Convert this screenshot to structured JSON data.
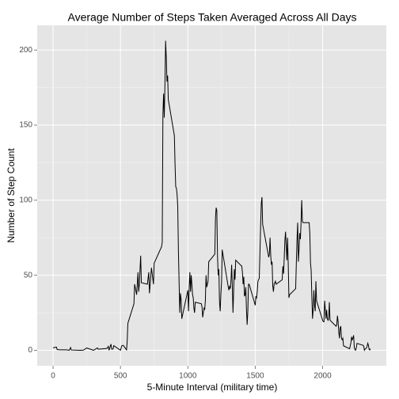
{
  "chart_data": {
    "type": "line",
    "title": "Average Number of Steps Taken Averaged Across All Days",
    "x_label": "5-Minute Interval (military time)",
    "y_label": "Number of Step Count",
    "color": "#000000",
    "grid": true,
    "xlim": [
      -117.75,
      2472.75
    ],
    "ylim": [
      -10.31,
      216.48
    ],
    "xticks": [
      0,
      500,
      1000,
      1500,
      2000
    ],
    "yticks": [
      0,
      50,
      100,
      150,
      200
    ],
    "x": [
      0,
      25,
      30,
      50,
      100,
      120,
      130,
      135,
      200,
      225,
      250,
      300,
      330,
      335,
      400,
      410,
      415,
      430,
      435,
      445,
      450,
      500,
      510,
      520,
      530,
      545,
      550,
      555,
      600,
      605,
      620,
      630,
      635,
      640,
      650,
      655,
      700,
      710,
      715,
      730,
      745,
      750,
      805,
      810,
      815,
      820,
      825,
      830,
      835,
      840,
      845,
      850,
      855,
      900,
      905,
      910,
      915,
      920,
      925,
      930,
      935,
      940,
      945,
      950,
      955,
      1000,
      1005,
      1010,
      1015,
      1020,
      1025,
      1030,
      1035,
      1040,
      1045,
      1050,
      1055,
      1100,
      1105,
      1110,
      1115,
      1120,
      1125,
      1130,
      1135,
      1140,
      1145,
      1150,
      1155,
      1200,
      1205,
      1210,
      1215,
      1220,
      1225,
      1230,
      1235,
      1240,
      1245,
      1250,
      1255,
      1300,
      1305,
      1310,
      1315,
      1320,
      1325,
      1330,
      1335,
      1340,
      1345,
      1350,
      1355,
      1400,
      1405,
      1410,
      1415,
      1420,
      1425,
      1430,
      1435,
      1440,
      1445,
      1450,
      1455,
      1500,
      1505,
      1510,
      1515,
      1520,
      1525,
      1530,
      1535,
      1540,
      1545,
      1550,
      1555,
      1600,
      1605,
      1610,
      1615,
      1620,
      1625,
      1630,
      1635,
      1640,
      1645,
      1650,
      1655,
      1700,
      1705,
      1710,
      1715,
      1720,
      1725,
      1730,
      1735,
      1740,
      1745,
      1750,
      1755,
      1800,
      1805,
      1810,
      1815,
      1820,
      1825,
      1830,
      1835,
      1840,
      1845,
      1850,
      1855,
      1900,
      1905,
      1910,
      1915,
      1920,
      1925,
      1930,
      1935,
      1940,
      1945,
      1950,
      1955,
      2000,
      2005,
      2010,
      2015,
      2020,
      2025,
      2030,
      2035,
      2040,
      2045,
      2050,
      2055,
      2100,
      2105,
      2110,
      2115,
      2120,
      2125,
      2130,
      2135,
      2140,
      2145,
      2150,
      2155,
      2200,
      2205,
      2210,
      2215,
      2220,
      2225,
      2230,
      2235,
      2240,
      2245,
      2250,
      2255,
      2300,
      2305,
      2310,
      2315,
      2320,
      2325,
      2330,
      2335,
      2340,
      2345,
      2350,
      2355
    ],
    "series": [
      {
        "name": "steps",
        "color": "#000000",
        "values": [
          1.7,
          2.1,
          0.5,
          0.3,
          0.3,
          0,
          1.8,
          0.2,
          0,
          0.1,
          1.5,
          0,
          1.6,
          0.7,
          1.2,
          2.6,
          0,
          4.1,
          0.7,
          0.8,
          3.1,
          0,
          3,
          3.3,
          2.1,
          0.3,
          6,
          18,
          31,
          44,
          37,
          52,
          39,
          44,
          63,
          45,
          44,
          52,
          38,
          55,
          44,
          58,
          69,
          72,
          157,
          171,
          155,
          177,
          206.2,
          195,
          179,
          183,
          167,
          143,
          124,
          109,
          108,
          104,
          96,
          66,
          46,
          25,
          38,
          34,
          21,
          40,
          26,
          42,
          52,
          39,
          50,
          44,
          37,
          35,
          28,
          25,
          32,
          31,
          29,
          22,
          25,
          28,
          27,
          33,
          50,
          42,
          44,
          46,
          59,
          64,
          88,
          95,
          93,
          63,
          50,
          54,
          32,
          26,
          37,
          45,
          67,
          42,
          40,
          43,
          41,
          46,
          57,
          43,
          25,
          40,
          54,
          47,
          60,
          56,
          52,
          44,
          49,
          36,
          37,
          42,
          27,
          17,
          26,
          44,
          44,
          30,
          36,
          35,
          39,
          46,
          47,
          48,
          65,
          83,
          98,
          102,
          84,
          62,
          64,
          75,
          63,
          57,
          59,
          43,
          39,
          44,
          45,
          46,
          44,
          47,
          56,
          51,
          61,
          73,
          79,
          69,
          60,
          75,
          57,
          35,
          37,
          41,
          58,
          74,
          85,
          59,
          67,
          78,
          74,
          85,
          100,
          86,
          85,
          85,
          78,
          58,
          53,
          36,
          21,
          27,
          40,
          30,
          26,
          46,
          33,
          20,
          19,
          19,
          33,
          27,
          21,
          27,
          21,
          20,
          21,
          32,
          20,
          16,
          17,
          23,
          19,
          12,
          8,
          15,
          16,
          8,
          7,
          8,
          3,
          1,
          3,
          5,
          9,
          7,
          8,
          10,
          2,
          0.3,
          0.1,
          1.6,
          4.6,
          3.3,
          2.8,
          0,
          0.8,
          1,
          1.6,
          2.6,
          4.7,
          3.3,
          0.6,
          0.2,
          1.1
        ]
      }
    ]
  }
}
